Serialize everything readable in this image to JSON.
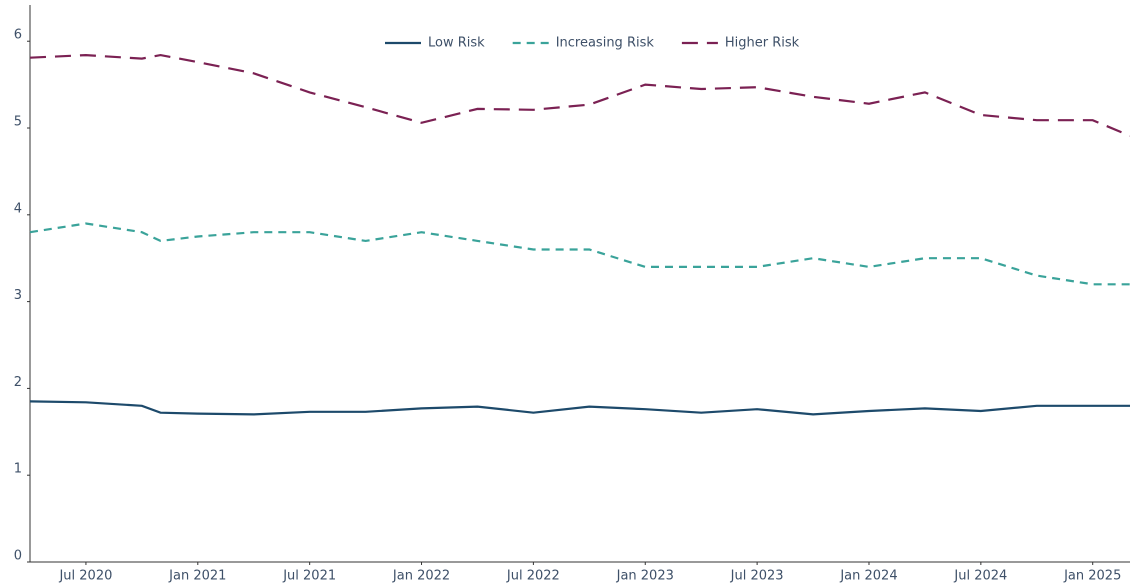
{
  "chart_data": {
    "type": "line",
    "x": [
      "2020-04",
      "2020-07",
      "2020-10",
      "2020-11",
      "2021-01",
      "2021-04",
      "2021-07",
      "2021-10",
      "2022-01",
      "2022-04",
      "2022-07",
      "2022-10",
      "2023-01",
      "2023-04",
      "2023-07",
      "2023-10",
      "2024-01",
      "2024-04",
      "2024-07",
      "2024-10",
      "2025-01",
      "2025-03"
    ],
    "series": [
      {
        "name": "Low Risk",
        "color": "#1d4a6b",
        "dash": "solid",
        "values": [
          1.85,
          1.84,
          1.8,
          1.72,
          1.71,
          1.7,
          1.73,
          1.73,
          1.77,
          1.79,
          1.72,
          1.79,
          1.76,
          1.72,
          1.76,
          1.7,
          1.74,
          1.77,
          1.74,
          1.8,
          1.8,
          1.8
        ]
      },
      {
        "name": "Increasing Risk",
        "color": "#3aa39a",
        "dash": "dash",
        "values": [
          3.8,
          3.9,
          3.8,
          3.7,
          3.75,
          3.8,
          3.8,
          3.7,
          3.8,
          3.7,
          3.6,
          3.6,
          3.4,
          3.4,
          3.4,
          3.5,
          3.4,
          3.5,
          3.5,
          3.3,
          3.2,
          3.2
        ]
      },
      {
        "name": "Higher Risk",
        "color": "#7b2153",
        "dash": "longdash",
        "values": [
          5.81,
          5.84,
          5.8,
          5.84,
          5.76,
          5.63,
          5.41,
          5.24,
          5.06,
          5.22,
          5.21,
          5.27,
          5.5,
          5.45,
          5.47,
          5.36,
          5.28,
          5.41,
          5.15,
          5.09,
          5.09,
          4.91
        ]
      }
    ],
    "xlim": [
      "2020-04",
      "2025-03"
    ],
    "xticks": [
      {
        "value": "2020-07",
        "label": "Jul 2020"
      },
      {
        "value": "2021-01",
        "label": "Jan 2021"
      },
      {
        "value": "2021-07",
        "label": "Jul 2021"
      },
      {
        "value": "2022-01",
        "label": "Jan 2022"
      },
      {
        "value": "2022-07",
        "label": "Jul 2022"
      },
      {
        "value": "2023-01",
        "label": "Jan 2023"
      },
      {
        "value": "2023-07",
        "label": "Jul 2023"
      },
      {
        "value": "2024-01",
        "label": "Jan 2024"
      },
      {
        "value": "2024-07",
        "label": "Jul 2024"
      },
      {
        "value": "2025-01",
        "label": "Jan 2025"
      }
    ],
    "ylim": [
      0,
      6.4
    ],
    "yticks": [
      0,
      1,
      2,
      3,
      4,
      5,
      6
    ],
    "grid": false,
    "legend": "top"
  }
}
